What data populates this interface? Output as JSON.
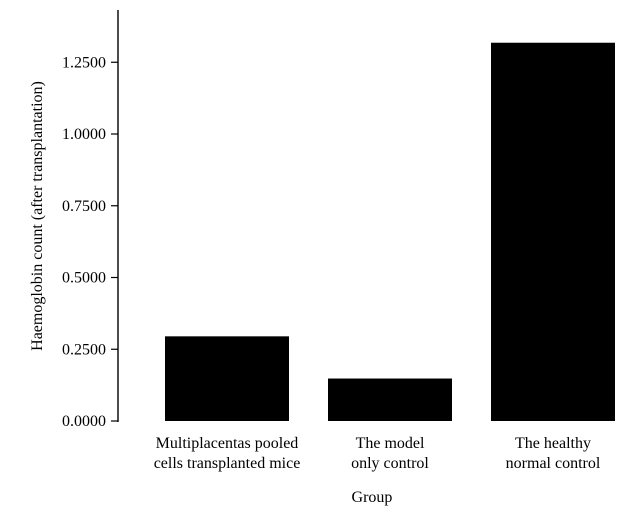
{
  "chart_data": {
    "type": "bar",
    "title": "",
    "xlabel": "Group",
    "ylabel": "Haemoglobin count (after transplantation)",
    "categories": [
      [
        "Multiplacentas pooled",
        "cells transplanted mice"
      ],
      [
        "The model",
        "only control"
      ],
      [
        "The healthy",
        "normal control"
      ]
    ],
    "values": [
      0.295,
      0.148,
      1.318
    ],
    "ylim": [
      0,
      1.4
    ],
    "yticks": [
      "0.0000",
      "0.2500",
      "0.5000",
      "0.7500",
      "1.0000",
      "1.2500"
    ],
    "grid": false,
    "legend": "none",
    "bar_color": "#000000"
  }
}
